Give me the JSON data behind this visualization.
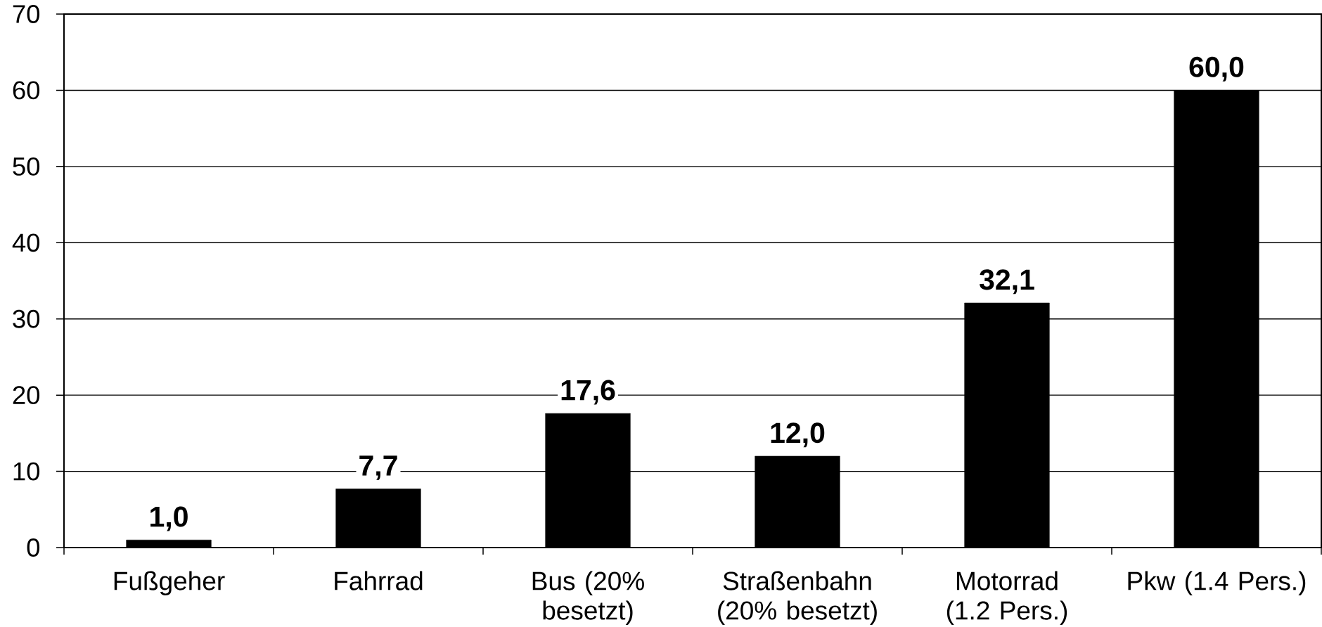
{
  "chart_data": {
    "type": "bar",
    "categories": [
      "Fußgeher",
      "Fahrrad",
      "Bus (20% besetzt)",
      "Straßenbahn (20% besetzt)",
      "Motorrad (1.2 Pers.)",
      "Pkw (1.4 Pers.)"
    ],
    "values": [
      1.0,
      7.7,
      17.6,
      12.0,
      32.1,
      60.0
    ],
    "value_labels": [
      "1,0",
      "7,7",
      "17,6",
      "12,0",
      "32,1",
      "60,0"
    ],
    "color": "#000000",
    "ylim": [
      0,
      70
    ],
    "yticks": [
      0,
      10,
      20,
      30,
      40,
      50,
      60,
      70
    ],
    "grid": "y"
  }
}
